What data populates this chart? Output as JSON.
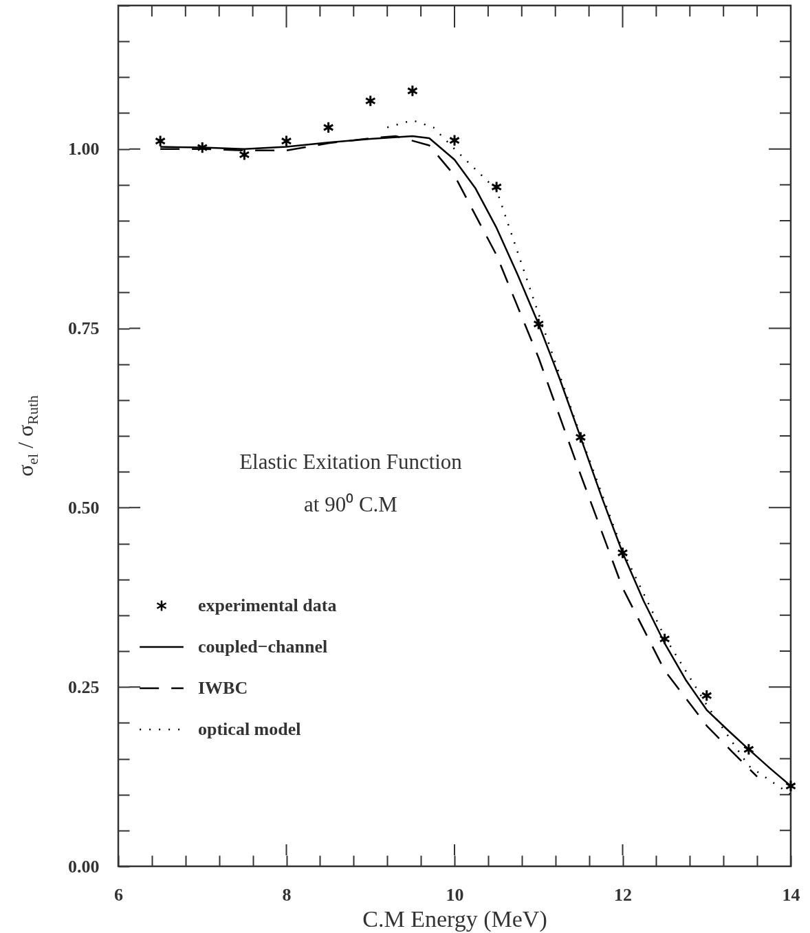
{
  "chart_data": {
    "type": "line",
    "title": "Elastic Exitation Function",
    "subtitle": "at 90⁰ C.M",
    "xlabel": "C.M Energy  (MeV)",
    "ylabel": "σ$_{el}$ / σ$_{Ruth}$",
    "xlim": [
      6,
      14
    ],
    "ylim": [
      0,
      1.2
    ],
    "xticks": [
      6,
      {
        "value": 6.4,
        "label": null
      },
      {
        "value": 6.8,
        "label": null
      },
      {
        "value": 7.2,
        "label": null
      },
      {
        "value": 7.6,
        "label": null
      },
      8,
      {
        "value": 8.4,
        "label": null
      },
      {
        "value": 8.8,
        "label": null
      },
      {
        "value": 9.2,
        "label": null
      },
      {
        "value": 9.6,
        "label": null
      },
      10,
      {
        "value": 10.4,
        "label": null
      },
      {
        "value": 10.8,
        "label": null
      },
      {
        "value": 11.2,
        "label": null
      },
      {
        "value": 11.6,
        "label": null
      },
      12,
      {
        "value": 12.4,
        "label": null
      },
      {
        "value": 12.8,
        "label": null
      },
      {
        "value": 13.2,
        "label": null
      },
      {
        "value": 13.6,
        "label": null
      },
      14
    ],
    "yticks": [
      {
        "value": 0,
        "label": "0.00"
      },
      {
        "value": 0.05,
        "label": null
      },
      {
        "value": 0.1,
        "label": null
      },
      {
        "value": 0.15,
        "label": null
      },
      {
        "value": 0.2,
        "label": null
      },
      0.25,
      {
        "value": 0.3,
        "label": null
      },
      {
        "value": 0.35,
        "label": null
      },
      {
        "value": 0.4,
        "label": null
      },
      {
        "value": 0.45,
        "label": null
      },
      {
        "value": 0.5,
        "label": "0.50"
      },
      {
        "value": 0.55,
        "label": null
      },
      {
        "value": 0.6,
        "label": null
      },
      {
        "value": 0.65,
        "label": null
      },
      {
        "value": 0.7,
        "label": null
      },
      0.75,
      {
        "value": 0.8,
        "label": null
      },
      {
        "value": 0.85,
        "label": null
      },
      {
        "value": 0.9,
        "label": null
      },
      {
        "value": 0.95,
        "label": null
      },
      {
        "value": 1,
        "label": "1.00"
      },
      {
        "value": 1.05,
        "label": null
      },
      {
        "value": 1.1,
        "label": null
      },
      {
        "value": 1.15,
        "label": null
      },
      {
        "value": 1.2,
        "label": null
      }
    ],
    "grid": false,
    "legend": "bottom left",
    "series": [
      {
        "name": "experimental data",
        "type": "scatter",
        "marker": "cross",
        "color": "#000000",
        "x": [
          6.5,
          7,
          7.5,
          8,
          8.5,
          9,
          9.5,
          10,
          10.5,
          11,
          11.5,
          12,
          12.5,
          13,
          13.5,
          14
        ],
        "values": [
          1.011,
          1.002,
          0.992,
          1.011,
          1.03,
          1.067,
          1.081,
          1.012,
          0.947,
          0.756,
          0.598,
          0.437,
          0.317,
          0.238,
          0.163,
          0.112
        ]
      },
      {
        "name": "coupled−channel",
        "line_style": "solid",
        "color": "#000000",
        "x": [
          6.5,
          7,
          7.5,
          8,
          8.5,
          9,
          9.5,
          9.7,
          10,
          10.25,
          10.5,
          10.75,
          11,
          11.25,
          11.5,
          11.75,
          12,
          12.25,
          12.5,
          12.75,
          13,
          13.25,
          13.5,
          13.75,
          14
        ],
        "values": [
          1.003,
          1.002,
          1.0,
          1.003,
          1.009,
          1.014,
          1.018,
          1.015,
          0.985,
          0.945,
          0.89,
          0.825,
          0.756,
          0.68,
          0.598,
          0.515,
          0.437,
          0.37,
          0.311,
          0.26,
          0.218,
          0.19,
          0.163,
          0.137,
          0.112
        ]
      },
      {
        "name": "IWBC",
        "line_style": "dashed",
        "color": "#000000",
        "x": [
          6.5,
          7,
          7.5,
          8,
          8.5,
          9,
          9.3,
          9.7,
          10,
          10.5,
          11,
          11.5,
          12,
          12.5,
          13,
          13.3,
          13.6
        ],
        "values": [
          1.0,
          1.0,
          0.998,
          0.998,
          1.008,
          1.015,
          1.018,
          1.005,
          0.963,
          0.852,
          0.709,
          0.546,
          0.388,
          0.273,
          0.196,
          0.16,
          0.125
        ]
      },
      {
        "name": "optical model",
        "line_style": "dotted",
        "color": "#000000",
        "x": [
          9.2,
          9.5,
          9.75,
          10,
          10.5,
          11,
          11.5,
          12,
          12.5,
          13,
          13.5,
          14
        ],
        "values": [
          1.03,
          1.04,
          1.03,
          1.0,
          0.943,
          0.77,
          0.6,
          0.44,
          0.32,
          0.225,
          0.14,
          0.1
        ]
      }
    ]
  }
}
